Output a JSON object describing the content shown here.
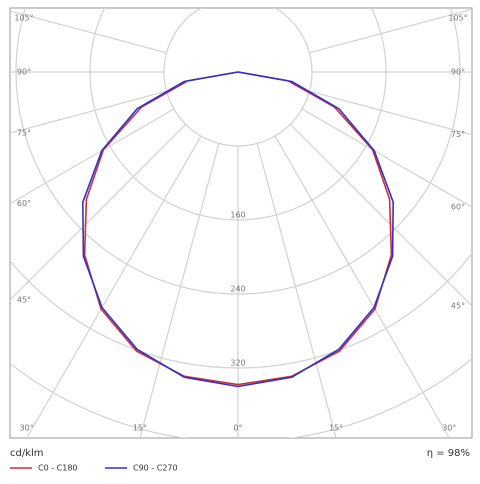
{
  "chart_data": {
    "type": "polar",
    "unit_label": "cd/klm",
    "efficiency_label": "η = 98%",
    "angles": [
      0,
      10,
      20,
      30,
      40,
      50,
      60,
      70,
      80,
      90
    ],
    "series": [
      {
        "name": "C0 - C180",
        "color": "#cc2f3a",
        "values": [
          338,
          334,
          321,
          296,
          258,
          214,
          168,
          111,
          55,
          0
        ]
      },
      {
        "name": "C90 - C270",
        "color": "#2f34c4",
        "values": [
          340,
          335,
          319,
          294,
          260,
          219,
          170,
          116,
          59,
          0
        ]
      }
    ],
    "rlim": [
      0,
      400
    ],
    "rgrid": [
      80,
      160,
      240,
      320,
      400
    ],
    "rticks": [
      160,
      240,
      320
    ],
    "angle_ticks": [
      {
        "value": 0,
        "label": "0°"
      },
      {
        "value": 15,
        "label": "15°"
      },
      {
        "value": 30,
        "label": "30°"
      },
      {
        "value": 45,
        "label": "45°"
      },
      {
        "value": 60,
        "label": "60°"
      },
      {
        "value": 75,
        "label": "75°"
      },
      {
        "value": 90,
        "label": "90°"
      },
      {
        "value": 105,
        "label": "105°"
      }
    ],
    "grid": true
  }
}
